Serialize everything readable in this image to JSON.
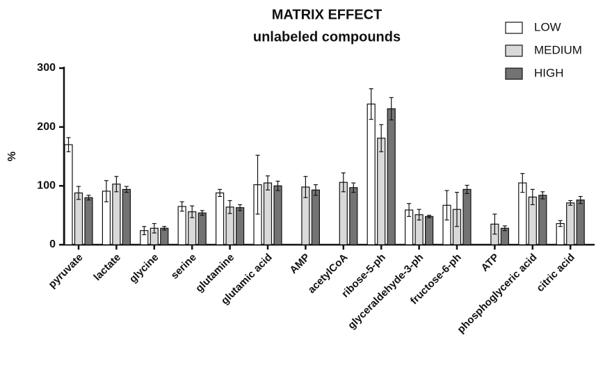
{
  "chart_data": {
    "type": "bar",
    "title": "MATRIX EFFECT",
    "subtitle": "unlabeled compounds",
    "y_label": "%",
    "categories": [
      "pyruvate",
      "lactate",
      "glycine",
      "serine",
      "glutamine",
      "glutamic acid",
      "AMP",
      "acetylCoA",
      "ribose-5-ph",
      "glyceraldehyde-3-ph",
      "fructose-6-ph",
      "ATP",
      "phosphoglyceric acid",
      "citric acid"
    ],
    "series": [
      {
        "name": "LOW",
        "color": "#ffffff",
        "values": [
          170,
          91,
          24,
          65,
          88,
          102,
          null,
          null,
          239,
          59,
          67,
          null,
          105,
          36
        ],
        "errors": [
          12,
          18,
          7,
          8,
          6,
          50,
          null,
          null,
          26,
          11,
          25,
          null,
          16,
          5
        ]
      },
      {
        "name": "MEDIUM",
        "color": "#d9d9d9",
        "values": [
          88,
          103,
          28,
          56,
          64,
          105,
          98,
          106,
          181,
          51,
          60,
          35,
          81,
          71
        ],
        "errors": [
          11,
          13,
          8,
          10,
          11,
          12,
          18,
          16,
          23,
          9,
          29,
          17,
          13,
          4
        ]
      },
      {
        "name": "HIGH",
        "color": "#737373",
        "values": [
          80,
          94,
          28,
          54,
          63,
          100,
          93,
          97,
          231,
          48,
          94,
          28,
          84,
          76
        ],
        "errors": [
          4,
          5,
          3,
          4,
          5,
          8,
          9,
          8,
          19,
          2,
          7,
          4,
          6,
          6
        ]
      }
    ],
    "ylim": [
      0,
      300
    ],
    "yticks": [
      0,
      100,
      200,
      300
    ],
    "grid": false,
    "legend": "top-right"
  }
}
